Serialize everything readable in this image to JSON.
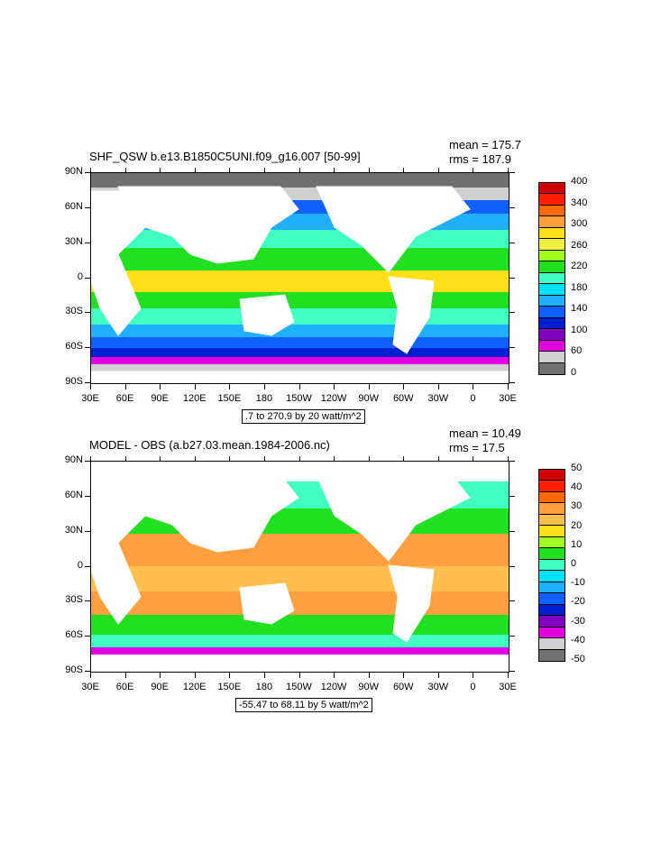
{
  "panels": [
    {
      "title": "SHF_QSW b.e13.B1850C5UNI.f09_g16.007 [50-99]",
      "mean": "mean = 175.7",
      "rms": "rms = 187.9",
      "contour_info": ".7 to 270.9 by 20 watt/m^2",
      "legend": {
        "labels": [
          "400",
          "340",
          "300",
          "260",
          "220",
          "180",
          "140",
          "100",
          "60",
          "0"
        ],
        "colors": [
          "#d00000",
          "#ff2000",
          "#ff6a00",
          "#ffa040",
          "#ffe01a",
          "#f0f040",
          "#a0ff20",
          "#20e020",
          "#40ffc0",
          "#00e0ff",
          "#20b0ff",
          "#1060ff",
          "#0020d0",
          "#8000c0",
          "#e000e0",
          "#d0d0d0",
          "#707070"
        ]
      }
    },
    {
      "title": "MODEL - OBS (a.b27.03.mean.1984-2006.nc)",
      "mean": "mean = 10.49",
      "rms": "rms = 17.5",
      "contour_info": "-55.47 to 68.11 by 5 watt/m^2",
      "legend": {
        "labels": [
          "50",
          "40",
          "30",
          "20",
          "10",
          "0",
          "-10",
          "-20",
          "-30",
          "-40",
          "-50"
        ],
        "colors": [
          "#d00000",
          "#ff2000",
          "#ff6a00",
          "#ffa040",
          "#ffc050",
          "#ffe01a",
          "#a0ff20",
          "#20e020",
          "#40ffc0",
          "#00e0ff",
          "#20b0ff",
          "#1060ff",
          "#0020d0",
          "#8000c0",
          "#e000e0",
          "#d0d0d0",
          "#707070"
        ]
      }
    }
  ],
  "lat_ticks": [
    "90N",
    "60N",
    "30N",
    "0",
    "30S",
    "60S",
    "90S"
  ],
  "lon_ticks": [
    "30E",
    "60E",
    "90E",
    "120E",
    "150E",
    "180",
    "150W",
    "120W",
    "90W",
    "60W",
    "30W",
    "0",
    "30E"
  ]
}
